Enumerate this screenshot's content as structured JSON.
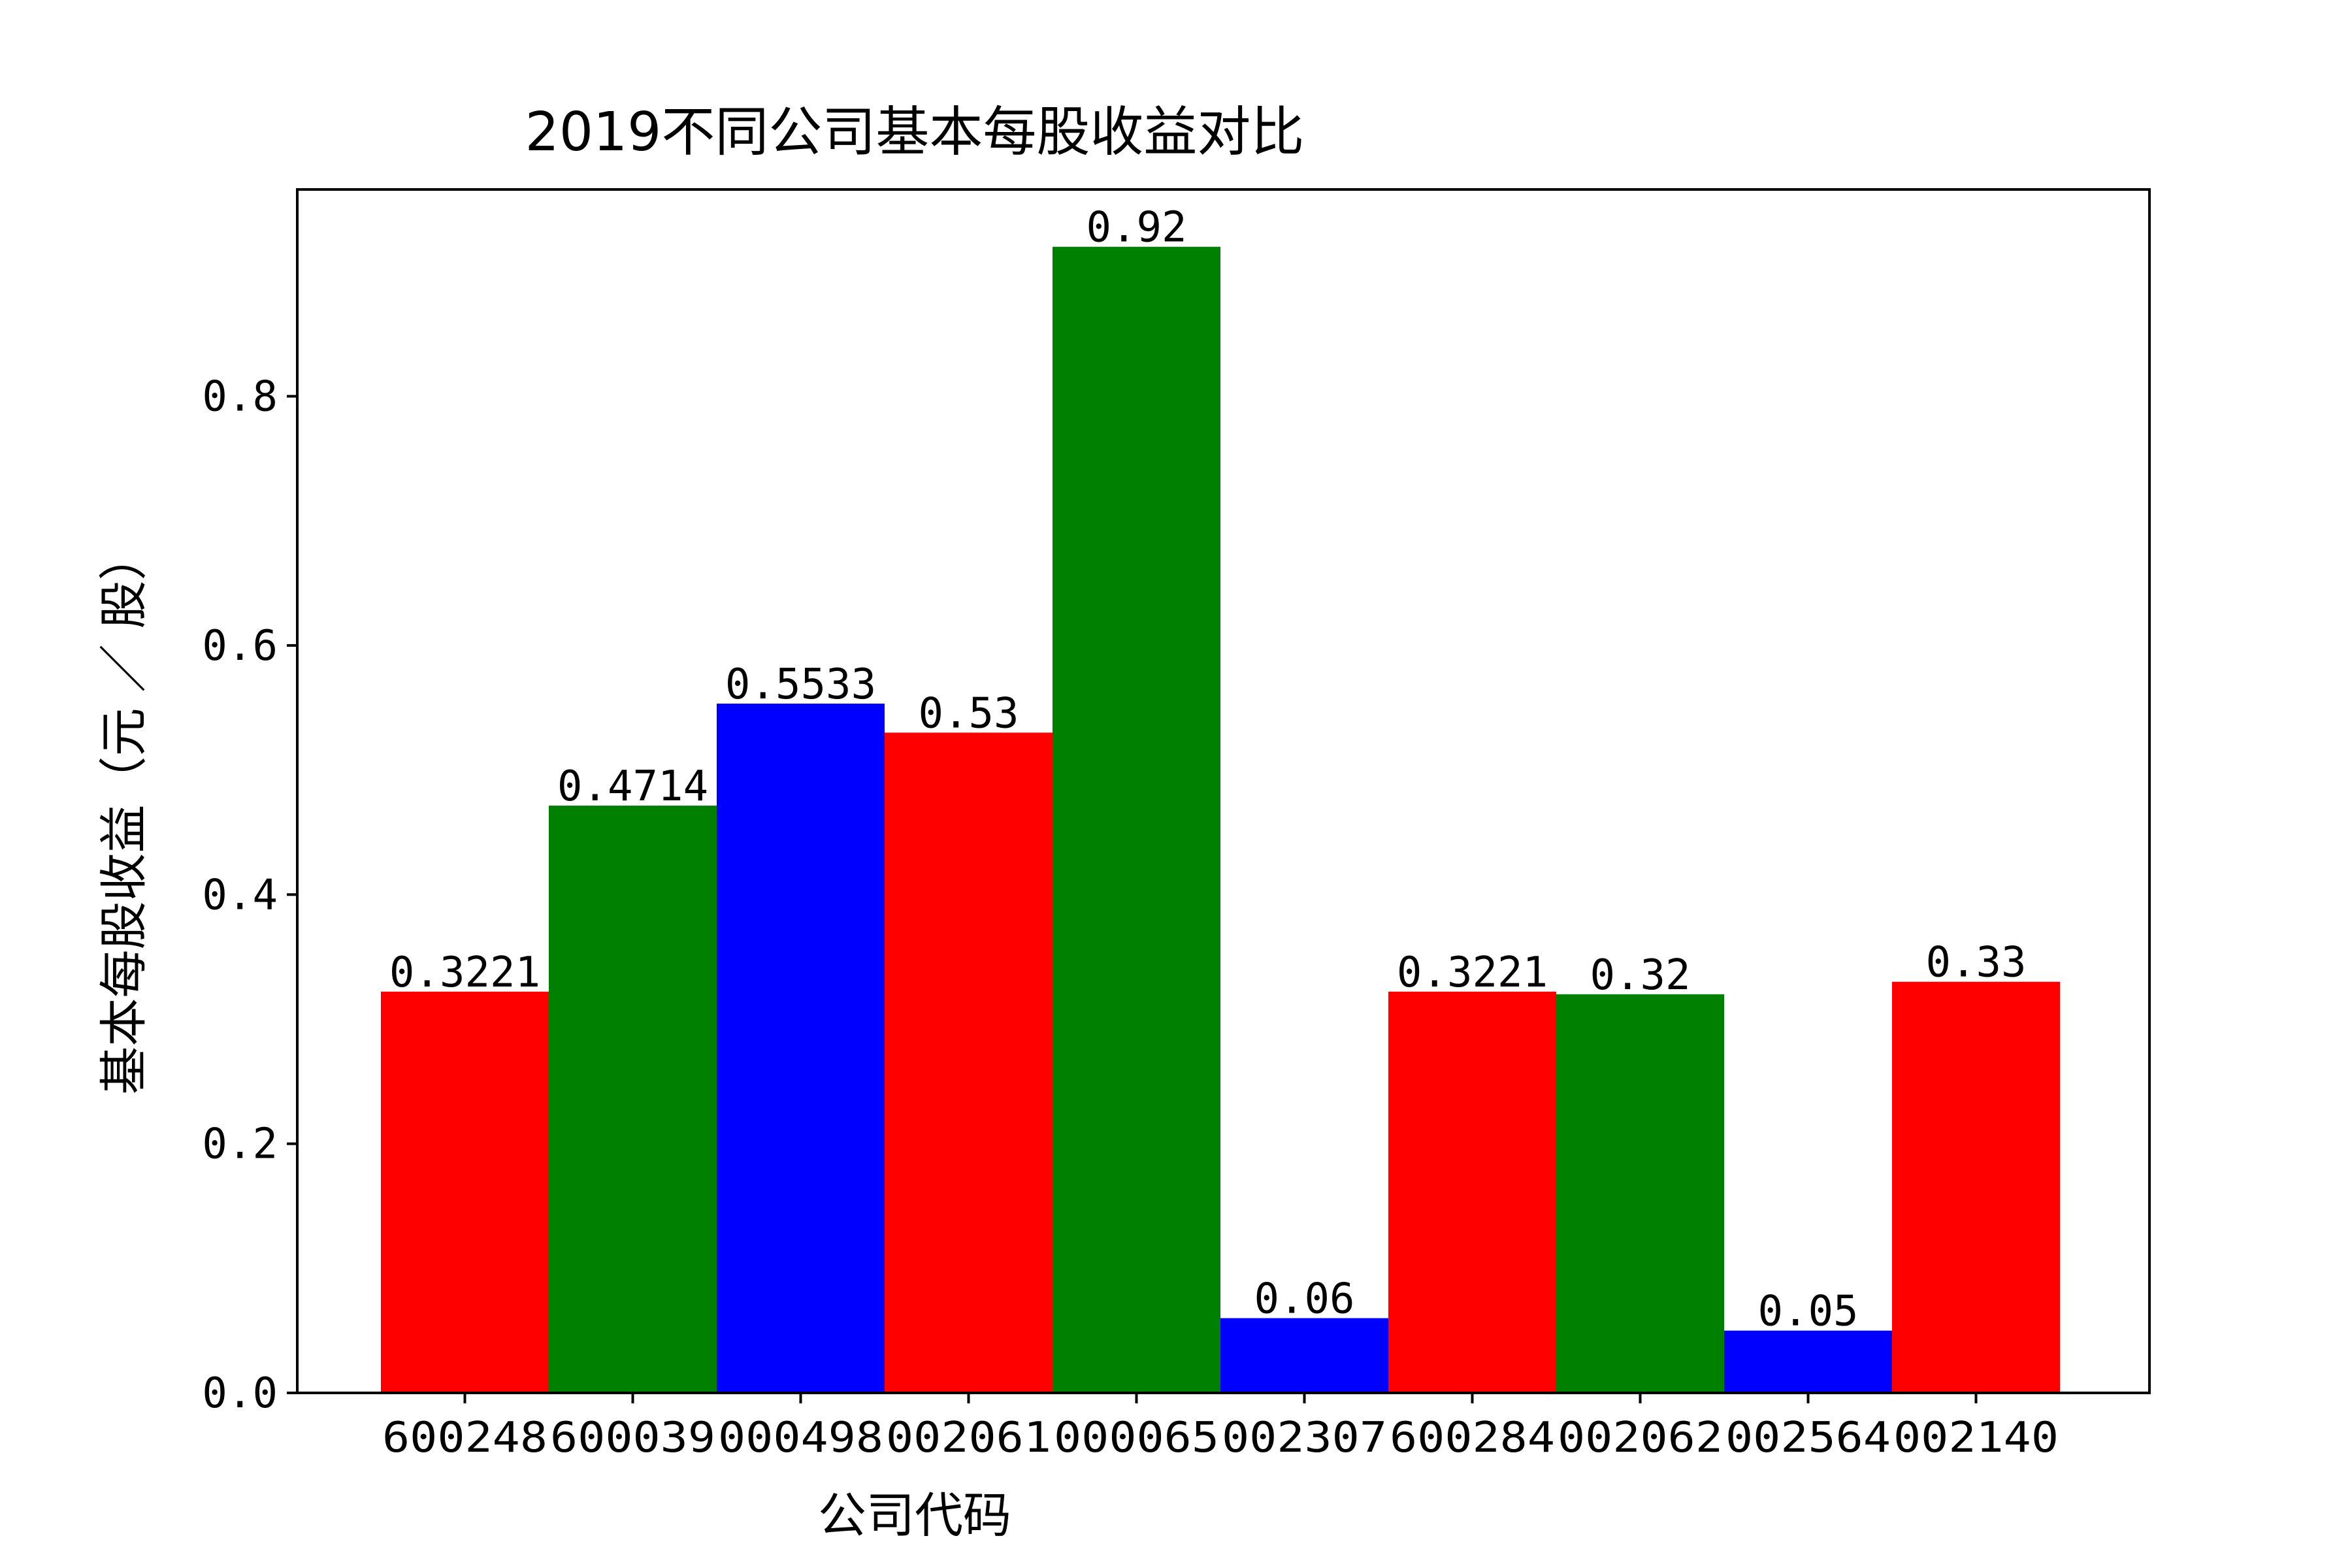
{
  "chart_data": {
    "type": "bar",
    "title": "2019不同公司基本每股收益对比",
    "xlabel": "公司代码",
    "ylabel": "基本每股收益（元 ／ 股）",
    "categories": [
      "600248",
      "600039",
      "000498",
      "002061",
      "000065",
      "002307",
      "600284",
      "002062",
      "002564",
      "002140"
    ],
    "values": [
      0.3221,
      0.4714,
      0.5533,
      0.53,
      0.92,
      0.06,
      0.3221,
      0.32,
      0.05,
      0.33
    ],
    "value_labels": [
      "0.3221",
      "0.4714",
      "0.5533",
      "0.53",
      "0.92",
      "0.06",
      "0.3221",
      "0.32",
      "0.05",
      "0.33"
    ],
    "colors": [
      "#ff0000",
      "#008000",
      "#0000ff",
      "#ff0000",
      "#008000",
      "#0000ff",
      "#ff0000",
      "#008000",
      "#0000ff",
      "#ff0000"
    ],
    "yticks": [
      0.0,
      0.2,
      0.4,
      0.6,
      0.8
    ],
    "ytick_labels": [
      "0.0",
      "0.2",
      "0.4",
      "0.6",
      "0.8"
    ],
    "ylim": [
      0,
      0.966
    ],
    "grid": false,
    "legend": "none"
  }
}
